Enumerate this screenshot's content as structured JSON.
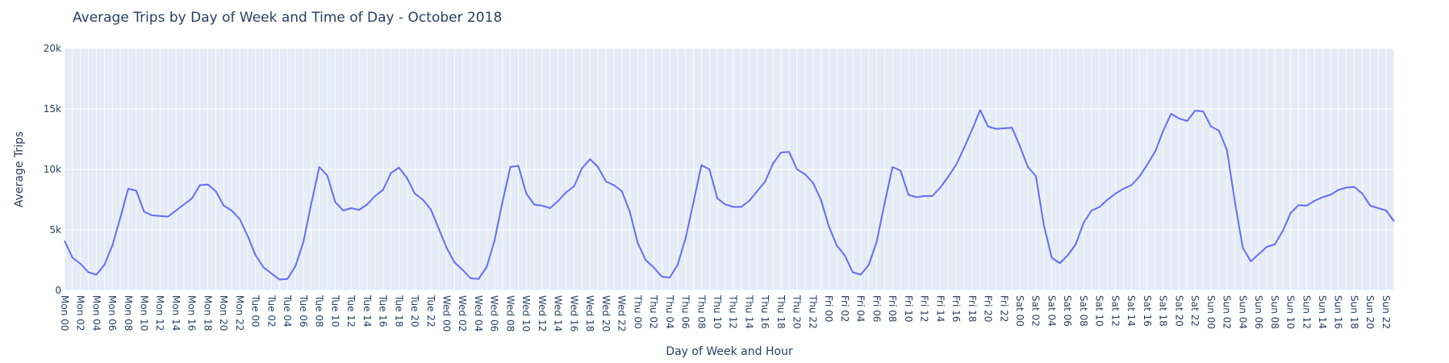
{
  "chart_data": {
    "type": "line",
    "title": "Average Trips by Day of Week and Time of Day - October 2018",
    "xlabel": "Day of Week and Hour",
    "ylabel": "Average Trips",
    "ylim": [
      0,
      20000
    ],
    "yticks": [
      {
        "value": 0,
        "label": "0"
      },
      {
        "value": 5000,
        "label": "5k"
      },
      {
        "value": 10000,
        "label": "10k"
      },
      {
        "value": 15000,
        "label": "15k"
      },
      {
        "value": 20000,
        "label": "20k"
      }
    ],
    "x_tick_labels": [
      "Mon 00",
      "Mon 02",
      "Mon 04",
      "Mon 06",
      "Mon 08",
      "Mon 10",
      "Mon 12",
      "Mon 14",
      "Mon 16",
      "Mon 18",
      "Mon 20",
      "Mon 22",
      "Tue 00",
      "Tue 02",
      "Tue 04",
      "Tue 06",
      "Tue 08",
      "Tue 10",
      "Tue 12",
      "Tue 14",
      "Tue 16",
      "Tue 18",
      "Tue 20",
      "Tue 22",
      "Wed 00",
      "Wed 02",
      "Wed 04",
      "Wed 06",
      "Wed 08",
      "Wed 10",
      "Wed 12",
      "Wed 14",
      "Wed 16",
      "Wed 18",
      "Wed 20",
      "Wed 22",
      "Thu 00",
      "Thu 02",
      "Thu 04",
      "Thu 06",
      "Thu 08",
      "Thu 10",
      "Thu 12",
      "Thu 14",
      "Thu 16",
      "Thu 18",
      "Thu 20",
      "Thu 22",
      "Fri 00",
      "Fri 02",
      "Fri 04",
      "Fri 06",
      "Fri 08",
      "Fri 10",
      "Fri 12",
      "Fri 14",
      "Fri 16",
      "Fri 18",
      "Fri 20",
      "Fri 22",
      "Sat 00",
      "Sat 02",
      "Sat 04",
      "Sat 06",
      "Sat 08",
      "Sat 10",
      "Sat 12",
      "Sat 14",
      "Sat 16",
      "Sat 18",
      "Sat 20",
      "Sat 22",
      "Sun 00",
      "Sun 02",
      "Sun 04",
      "Sun 06",
      "Sun 08",
      "Sun 10",
      "Sun 12",
      "Sun 14",
      "Sun 16",
      "Sun 18",
      "Sun 20",
      "Sun 22"
    ],
    "line_color": "#636efa",
    "plot_background": "#e5ecf6",
    "grid": true,
    "legend": false,
    "series": [
      {
        "values": [
          4100,
          2700,
          2200,
          1500,
          1300,
          2100,
          3700,
          6000,
          8400,
          8250,
          6500,
          6200,
          6150,
          6100,
          6600,
          7100,
          7600,
          8700,
          8750,
          8200,
          7000,
          6600,
          5900,
          4500,
          2900,
          1900,
          1400,
          900,
          950,
          2000,
          4000,
          7200,
          10200,
          9500,
          7300,
          6600,
          6800,
          6650,
          7100,
          7800,
          8300,
          9700,
          10150,
          9300,
          8000,
          7500,
          6700,
          5100,
          3500,
          2300,
          1700,
          1000,
          950,
          1900,
          4100,
          7300,
          10200,
          10300,
          8000,
          7100,
          7000,
          6800,
          7400,
          8100,
          8600,
          10100,
          10850,
          10200,
          9000,
          8700,
          8200,
          6500,
          3900,
          2500,
          1900,
          1150,
          1050,
          2100,
          4300,
          7300,
          10350,
          10000,
          7600,
          7100,
          6900,
          6900,
          7400,
          8200,
          9000,
          10500,
          11400,
          11450,
          10000,
          9600,
          8900,
          7500,
          5300,
          3700,
          2900,
          1500,
          1300,
          2100,
          4000,
          7200,
          10200,
          9900,
          7900,
          7700,
          7800,
          7800,
          8500,
          9400,
          10400,
          11800,
          13300,
          14900,
          13550,
          13350,
          13400,
          13450,
          11900,
          10200,
          9450,
          5400,
          2700,
          2250,
          2900,
          3800,
          5600,
          6600,
          6900,
          7500,
          8000,
          8400,
          8700,
          9400,
          10400,
          11500,
          13200,
          14600,
          14200,
          14000,
          14850,
          14800,
          13550,
          13200,
          11600,
          7300,
          3500,
          2400,
          3000,
          3600,
          3800,
          4900,
          6400,
          7050,
          7000,
          7400,
          7700,
          7900,
          8300,
          8500,
          8550,
          8000,
          7000,
          6800,
          6600,
          5700
        ]
      }
    ]
  }
}
